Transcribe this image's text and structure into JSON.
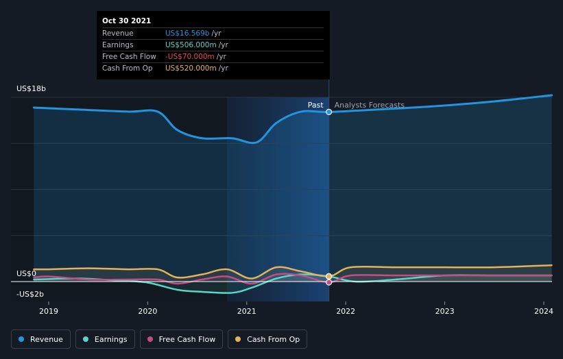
{
  "chart_data": {
    "type": "line",
    "y_axis": {
      "top_label": "US$18b",
      "zero_label": "US$0",
      "bottom_label": "-US$2b",
      "ylim": [
        -2,
        18
      ]
    },
    "x_ticks": [
      "2019",
      "2020",
      "2021",
      "2022",
      "2023",
      "2024"
    ],
    "markers": {
      "past_label": "Past",
      "forecast_label": "Analysts Forecasts",
      "divider_date": 2021.83
    },
    "series": [
      {
        "name": "Revenue",
        "color": "#2394df",
        "x": [
          2018.85,
          2019.3,
          2019.8,
          2020.1,
          2020.3,
          2020.55,
          2020.85,
          2021.1,
          2021.3,
          2021.55,
          2021.83,
          2022.5,
          2023.0,
          2023.5,
          2024.08
        ],
        "y": [
          17.0,
          16.8,
          16.6,
          16.6,
          14.8,
          14.0,
          14.0,
          13.6,
          15.5,
          16.6,
          16.57,
          16.9,
          17.2,
          17.6,
          18.2
        ]
      },
      {
        "name": "Earnings",
        "color": "#58d7c6",
        "x": [
          2018.85,
          2019.3,
          2019.7,
          2020.0,
          2020.3,
          2020.55,
          2020.85,
          2021.05,
          2021.3,
          2021.55,
          2021.83,
          2022.1,
          2022.5,
          2023.0,
          2023.5,
          2024.08
        ],
        "y": [
          0.2,
          0.3,
          0.1,
          -0.1,
          -0.8,
          -1.0,
          -1.1,
          -0.6,
          0.3,
          0.7,
          0.506,
          0.0,
          0.2,
          0.6,
          0.6,
          0.6
        ]
      },
      {
        "name": "Free Cash Flow",
        "color": "#c34e86",
        "x": [
          2018.85,
          2019.0,
          2019.4,
          2019.8,
          2020.1,
          2020.3,
          2020.55,
          2020.8,
          2021.05,
          2021.3,
          2021.55,
          2021.83,
          2022.05,
          2022.5,
          2023.0,
          2023.5,
          2024.08
        ],
        "y": [
          0.4,
          0.5,
          0.2,
          0.2,
          0.2,
          -0.2,
          0.2,
          0.5,
          -0.2,
          0.7,
          0.6,
          -0.07,
          0.6,
          0.6,
          0.6,
          0.6,
          0.6
        ]
      },
      {
        "name": "Cash From Op",
        "color": "#e5b25c",
        "x": [
          2018.85,
          2019.0,
          2019.4,
          2019.8,
          2020.1,
          2020.3,
          2020.55,
          2020.8,
          2021.05,
          2021.3,
          2021.55,
          2021.83,
          2022.05,
          2022.5,
          2023.0,
          2023.5,
          2024.08
        ],
        "y": [
          1.2,
          1.2,
          1.3,
          1.2,
          1.2,
          0.4,
          0.7,
          1.2,
          0.3,
          1.4,
          1.0,
          0.52,
          1.4,
          1.4,
          1.4,
          1.4,
          1.6
        ]
      }
    ],
    "tooltip": {
      "date": "Oct 30 2021",
      "rows": [
        {
          "label": "Revenue",
          "value": "US$16.569b",
          "unit": "/yr",
          "color": "#2394df"
        },
        {
          "label": "Earnings",
          "value": "US$506.000m",
          "unit": "/yr",
          "color": "#58d7c6"
        },
        {
          "label": "Free Cash Flow",
          "value": "-US$70.000m",
          "unit": "/yr",
          "color": "#e84a4a"
        },
        {
          "label": "Cash From Op",
          "value": "US$520.000m",
          "unit": "/yr",
          "color": "#e5b25c"
        }
      ]
    }
  },
  "legend": [
    {
      "label": "Revenue",
      "color": "#2394df"
    },
    {
      "label": "Earnings",
      "color": "#58d7c6"
    },
    {
      "label": "Free Cash Flow",
      "color": "#c34e86"
    },
    {
      "label": "Cash From Op",
      "color": "#e5b25c"
    }
  ]
}
